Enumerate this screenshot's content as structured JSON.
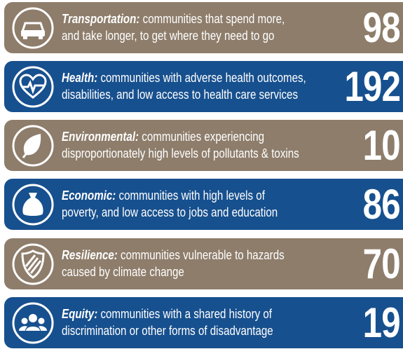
{
  "items": [
    {
      "label": "Transportation:",
      "lines": [
        "communities that spend more,",
        "and take longer, to get where they need to go"
      ],
      "value": "98"
    },
    {
      "label": "Health:",
      "lines": [
        "communities with adverse health outcomes,",
        "disabilities, and low access to health care services"
      ],
      "value": "192"
    },
    {
      "label": "Environmental:",
      "lines": [
        "communities experiencing",
        "disproportionately high levels of pollutants & toxins"
      ],
      "value": "10"
    },
    {
      "label": "Economic:",
      "lines": [
        "communities with high levels of",
        "poverty, and low access to jobs and education"
      ],
      "value": "86"
    },
    {
      "label": "Resilience:",
      "lines": [
        "communities vulnerable to hazards",
        "caused by climate change"
      ],
      "value": "70"
    },
    {
      "label": "Equity:",
      "lines": [
        "communities with a shared history of",
        "discrimination or other forms of disadvantage"
      ],
      "value": "19"
    }
  ]
}
